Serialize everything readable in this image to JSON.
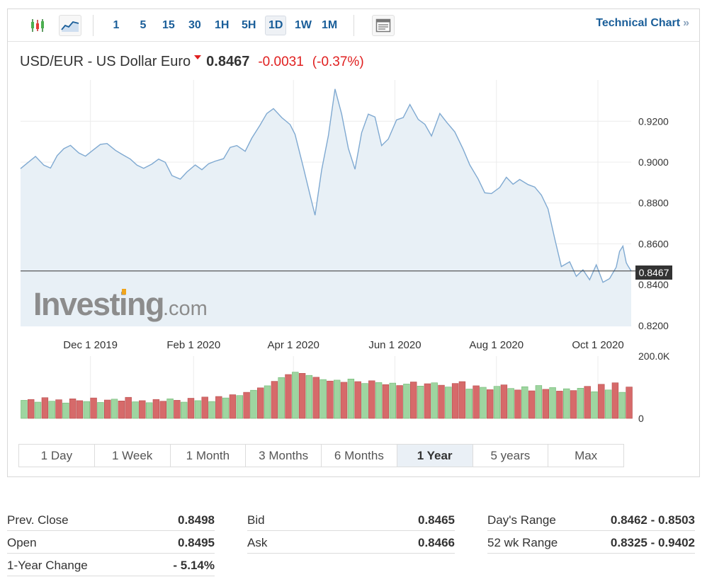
{
  "toolbar": {
    "intervals": [
      "1",
      "5",
      "15",
      "30",
      "1H",
      "5H",
      "1D",
      "1W",
      "1M"
    ],
    "active_interval": "1D",
    "technical_chart_label": "Technical Chart",
    "technical_chart_chevron": "»",
    "icons": [
      "candlestick-icon",
      "line-chart-icon",
      "table-view-icon"
    ]
  },
  "quote": {
    "title": "USD/EUR - US Dollar Euro",
    "last": "0.8467",
    "change": "-0.0031",
    "change_pct": "(-0.37%)",
    "direction": "down"
  },
  "watermark": {
    "brand": "Investing",
    "suffix": ".com"
  },
  "colors": {
    "line": "#7fa9d1",
    "area": "#e8f0f6",
    "up_bar": "#9ed5a0",
    "down_bar": "#d66a6a",
    "negative": "#e01f1f",
    "link": "#1a5e99"
  },
  "chart_data": {
    "type": "area",
    "x_tick_labels": [
      "Dec 1 2019",
      "Feb 1 2020",
      "Apr 1 2020",
      "Jun 1 2020",
      "Aug 1 2020",
      "Oct 1 2020"
    ],
    "x_ticks": [
      "2019-12-01",
      "2020-02-01",
      "2020-04-01",
      "2020-06-01",
      "2020-08-01",
      "2020-10-01"
    ],
    "y_ticks": [
      "0.9200",
      "0.9000",
      "0.8800",
      "0.8600",
      "0.8400",
      "0.8200"
    ],
    "ylim": [
      0.8196,
      0.9402
    ],
    "xlim": [
      "2019-10-20",
      "2020-10-21"
    ],
    "current_price": 0.8467,
    "current_price_label": "0.8467",
    "grid": true,
    "series": [
      {
        "values": [
          [
            "2019-10-20",
            0.8968
          ],
          [
            "2019-10-24",
            0.8995
          ],
          [
            "2019-10-29",
            0.9028
          ],
          [
            "2019-11-03",
            0.8985
          ],
          [
            "2019-11-07",
            0.8971
          ],
          [
            "2019-11-11",
            0.9032
          ],
          [
            "2019-11-15",
            0.9066
          ],
          [
            "2019-11-19",
            0.9082
          ],
          [
            "2019-11-24",
            0.9045
          ],
          [
            "2019-11-28",
            0.9029
          ],
          [
            "2019-12-02",
            0.9055
          ],
          [
            "2019-12-07",
            0.9087
          ],
          [
            "2019-12-11",
            0.9091
          ],
          [
            "2019-12-16",
            0.9058
          ],
          [
            "2019-12-20",
            0.9038
          ],
          [
            "2019-12-25",
            0.9015
          ],
          [
            "2019-12-29",
            0.8985
          ],
          [
            "2020-01-02",
            0.897
          ],
          [
            "2020-01-07",
            0.8991
          ],
          [
            "2020-01-11",
            0.9015
          ],
          [
            "2020-01-15",
            0.8999
          ],
          [
            "2020-01-19",
            0.8934
          ],
          [
            "2020-01-24",
            0.8917
          ],
          [
            "2020-01-28",
            0.8952
          ],
          [
            "2020-02-02",
            0.8986
          ],
          [
            "2020-02-06",
            0.8963
          ],
          [
            "2020-02-10",
            0.8992
          ],
          [
            "2020-02-14",
            0.9005
          ],
          [
            "2020-02-19",
            0.9017
          ],
          [
            "2020-02-23",
            0.9072
          ],
          [
            "2020-02-27",
            0.9081
          ],
          [
            "2020-03-03",
            0.9053
          ],
          [
            "2020-03-07",
            0.9118
          ],
          [
            "2020-03-12",
            0.9182
          ],
          [
            "2020-03-16",
            0.9238
          ],
          [
            "2020-03-20",
            0.9262
          ],
          [
            "2020-03-25",
            0.9218
          ],
          [
            "2020-03-30",
            0.9184
          ],
          [
            "2020-04-02",
            0.9136
          ],
          [
            "2020-04-07",
            0.8973
          ],
          [
            "2020-04-11",
            0.8838
          ],
          [
            "2020-04-14",
            0.874
          ],
          [
            "2020-04-18",
            0.8963
          ],
          [
            "2020-04-22",
            0.9129
          ],
          [
            "2020-04-26",
            0.9358
          ],
          [
            "2020-04-30",
            0.9235
          ],
          [
            "2020-05-04",
            0.9068
          ],
          [
            "2020-05-08",
            0.8965
          ],
          [
            "2020-05-12",
            0.9144
          ],
          [
            "2020-05-16",
            0.9235
          ],
          [
            "2020-05-20",
            0.9221
          ],
          [
            "2020-05-24",
            0.9081
          ],
          [
            "2020-05-28",
            0.9113
          ],
          [
            "2020-06-02",
            0.9207
          ],
          [
            "2020-06-06",
            0.9218
          ],
          [
            "2020-06-10",
            0.9282
          ],
          [
            "2020-06-15",
            0.9209
          ],
          [
            "2020-06-19",
            0.9185
          ],
          [
            "2020-06-23",
            0.9128
          ],
          [
            "2020-06-28",
            0.9238
          ],
          [
            "2020-07-02",
            0.9196
          ],
          [
            "2020-07-07",
            0.9148
          ],
          [
            "2020-07-12",
            0.9063
          ],
          [
            "2020-07-16",
            0.8986
          ],
          [
            "2020-07-21",
            0.8918
          ],
          [
            "2020-07-25",
            0.885
          ],
          [
            "2020-07-29",
            0.8846
          ],
          [
            "2020-08-03",
            0.8876
          ],
          [
            "2020-08-07",
            0.8926
          ],
          [
            "2020-08-11",
            0.8892
          ],
          [
            "2020-08-15",
            0.8915
          ],
          [
            "2020-08-20",
            0.889
          ],
          [
            "2020-08-24",
            0.8878
          ],
          [
            "2020-08-28",
            0.8839
          ],
          [
            "2020-09-01",
            0.8771
          ],
          [
            "2020-09-05",
            0.8626
          ],
          [
            "2020-09-09",
            0.8489
          ],
          [
            "2020-09-14",
            0.8512
          ],
          [
            "2020-09-18",
            0.8441
          ],
          [
            "2020-09-22",
            0.8473
          ],
          [
            "2020-09-26",
            0.8424
          ],
          [
            "2020-09-30",
            0.8497
          ],
          [
            "2020-10-04",
            0.8412
          ],
          [
            "2020-10-08",
            0.843
          ],
          [
            "2020-10-12",
            0.8486
          ],
          [
            "2020-10-14",
            0.8563
          ],
          [
            "2020-10-16",
            0.8589
          ],
          [
            "2020-10-18",
            0.8508
          ],
          [
            "2020-10-19",
            0.8493
          ],
          [
            "2020-10-21",
            0.8467
          ]
        ]
      }
    ],
    "volume": {
      "ylim": [
        0,
        210000
      ],
      "tick_labels": [
        "200.0K",
        "0"
      ],
      "values": [
        [
          61000,
          "up"
        ],
        [
          64000,
          "down"
        ],
        [
          55000,
          "up"
        ],
        [
          70000,
          "down"
        ],
        [
          58000,
          "up"
        ],
        [
          63000,
          "down"
        ],
        [
          52000,
          "up"
        ],
        [
          66000,
          "down"
        ],
        [
          60000,
          "down"
        ],
        [
          57000,
          "up"
        ],
        [
          69000,
          "down"
        ],
        [
          54000,
          "up"
        ],
        [
          62000,
          "down"
        ],
        [
          65000,
          "up"
        ],
        [
          59000,
          "down"
        ],
        [
          71000,
          "down"
        ],
        [
          56000,
          "up"
        ],
        [
          60000,
          "down"
        ],
        [
          53000,
          "up"
        ],
        [
          64000,
          "down"
        ],
        [
          58000,
          "down"
        ],
        [
          66000,
          "up"
        ],
        [
          61000,
          "down"
        ],
        [
          55000,
          "up"
        ],
        [
          68000,
          "down"
        ],
        [
          60000,
          "up"
        ],
        [
          72000,
          "down"
        ],
        [
          57000,
          "up"
        ],
        [
          74000,
          "down"
        ],
        [
          69000,
          "up"
        ],
        [
          80000,
          "down"
        ],
        [
          77000,
          "up"
        ],
        [
          88000,
          "down"
        ],
        [
          95000,
          "up"
        ],
        [
          103000,
          "down"
        ],
        [
          110000,
          "up"
        ],
        [
          125000,
          "down"
        ],
        [
          138000,
          "up"
        ],
        [
          148000,
          "down"
        ],
        [
          156000,
          "up"
        ],
        [
          152000,
          "down"
        ],
        [
          145000,
          "up"
        ],
        [
          139000,
          "down"
        ],
        [
          131000,
          "up"
        ],
        [
          126000,
          "down"
        ],
        [
          129000,
          "up"
        ],
        [
          122000,
          "down"
        ],
        [
          133000,
          "up"
        ],
        [
          124000,
          "down"
        ],
        [
          118000,
          "up"
        ],
        [
          127000,
          "down"
        ],
        [
          121000,
          "up"
        ],
        [
          114000,
          "down"
        ],
        [
          119000,
          "up"
        ],
        [
          111000,
          "down"
        ],
        [
          116000,
          "up"
        ],
        [
          123000,
          "down"
        ],
        [
          109000,
          "up"
        ],
        [
          117000,
          "down"
        ],
        [
          120000,
          "up"
        ],
        [
          112000,
          "down"
        ],
        [
          106000,
          "up"
        ],
        [
          118000,
          "down"
        ],
        [
          124000,
          "down"
        ],
        [
          99000,
          "up"
        ],
        [
          110000,
          "down"
        ],
        [
          105000,
          "up"
        ],
        [
          97000,
          "down"
        ],
        [
          108000,
          "up"
        ],
        [
          113000,
          "down"
        ],
        [
          101000,
          "up"
        ],
        [
          96000,
          "down"
        ],
        [
          107000,
          "up"
        ],
        [
          93000,
          "down"
        ],
        [
          111000,
          "up"
        ],
        [
          98000,
          "down"
        ],
        [
          104000,
          "up"
        ],
        [
          92000,
          "down"
        ],
        [
          100000,
          "up"
        ],
        [
          94000,
          "down"
        ],
        [
          102000,
          "up"
        ],
        [
          108000,
          "down"
        ],
        [
          90000,
          "up"
        ],
        [
          115000,
          "down"
        ],
        [
          96000,
          "up"
        ],
        [
          120000,
          "down"
        ],
        [
          88000,
          "up"
        ],
        [
          106000,
          "down"
        ]
      ]
    }
  },
  "range_tabs": [
    "1 Day",
    "1 Week",
    "1 Month",
    "3 Months",
    "6 Months",
    "1 Year",
    "5 years",
    "Max"
  ],
  "active_range": "1 Year",
  "stats": {
    "col1": [
      {
        "label": "Prev. Close",
        "value": "0.8498"
      },
      {
        "label": "Open",
        "value": "0.8495"
      },
      {
        "label": "1-Year Change",
        "value": "- 5.14%"
      }
    ],
    "col2": [
      {
        "label": "Bid",
        "value": "0.8465"
      },
      {
        "label": "Ask",
        "value": "0.8466"
      }
    ],
    "col3": [
      {
        "label": "Day's Range",
        "value": "0.8462 - 0.8503"
      },
      {
        "label": "52 wk Range",
        "value": "0.8325 - 0.9402"
      }
    ]
  }
}
